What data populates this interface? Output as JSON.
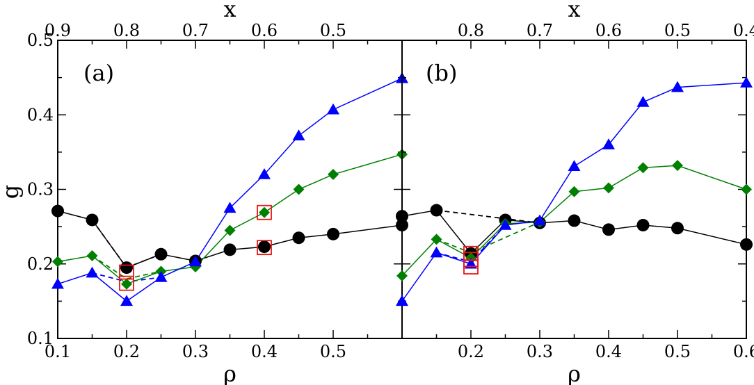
{
  "chart_data": {
    "type": "line",
    "shared_ylabel": "g",
    "ylim": [
      0.1,
      0.5
    ],
    "yticks": [
      "0.1",
      "0.2",
      "0.3",
      "0.4",
      "0.5"
    ],
    "panels": [
      {
        "label": "(a)",
        "xlabel": "ρ",
        "x2label": "x",
        "xlim": [
          0.1,
          0.6
        ],
        "xticks": [
          {
            "value": 0.1,
            "label": "0.1"
          },
          {
            "value": 0.2,
            "label": "0.2"
          },
          {
            "value": 0.3,
            "label": "0.3"
          },
          {
            "value": 0.4,
            "label": "0.4"
          },
          {
            "value": 0.5,
            "label": "0.5"
          }
        ],
        "x2ticks": [
          {
            "value": 0.1,
            "label": "0.9"
          },
          {
            "value": 0.2,
            "label": "0.8"
          },
          {
            "value": 0.3,
            "label": "0.7"
          },
          {
            "value": 0.4,
            "label": "0.6"
          },
          {
            "value": 0.5,
            "label": "0.5"
          }
        ],
        "series": [
          {
            "name": "black-circles",
            "color": "#000000",
            "marker": "circle",
            "x": [
              0.1,
              0.15,
              0.2,
              0.25,
              0.3,
              0.35,
              0.4,
              0.45,
              0.5,
              0.6
            ],
            "y": [
              0.271,
              0.259,
              0.195,
              0.213,
              0.204,
              0.219,
              0.223,
              0.235,
              0.24,
              0.252
            ]
          },
          {
            "name": "green-diamonds",
            "color": "#008000",
            "marker": "diamond",
            "x": [
              0.1,
              0.15,
              0.2,
              0.25,
              0.3,
              0.35,
              0.4,
              0.45,
              0.5,
              0.6
            ],
            "y": [
              0.203,
              0.211,
              0.173,
              0.19,
              0.196,
              0.245,
              0.269,
              0.3,
              0.32,
              0.347
            ]
          },
          {
            "name": "blue-triangles",
            "color": "#0000ff",
            "marker": "triangle",
            "x": [
              0.1,
              0.15,
              0.2,
              0.25,
              0.3,
              0.35,
              0.4,
              0.45,
              0.5,
              0.6
            ],
            "y": [
              0.173,
              0.188,
              0.15,
              0.182,
              0.203,
              0.275,
              0.32,
              0.372,
              0.407,
              0.449
            ]
          }
        ],
        "dashed_bridges": [
          {
            "color": "#000000",
            "x": [
              0.15,
              0.2,
              0.25
            ],
            "y": [
              0.259,
              0.195,
              0.213
            ]
          },
          {
            "color": "#008000",
            "x": [
              0.15,
              0.2,
              0.25
            ],
            "y": [
              0.211,
              0.18,
              0.19
            ]
          },
          {
            "color": "#0000ff",
            "x": [
              0.15,
              0.2,
              0.25
            ],
            "y": [
              0.188,
              0.176,
              0.182
            ]
          }
        ],
        "highlight_boxes": [
          {
            "x": 0.2,
            "y": 0.189
          },
          {
            "x": 0.2,
            "y": 0.174
          },
          {
            "x": 0.4,
            "y": 0.269
          },
          {
            "x": 0.4,
            "y": 0.222
          }
        ]
      },
      {
        "label": "(b)",
        "xlabel": "ρ",
        "x2label": "x",
        "xlim": [
          0.1,
          0.6
        ],
        "xticks": [
          {
            "value": 0.2,
            "label": "0.2"
          },
          {
            "value": 0.3,
            "label": "0.3"
          },
          {
            "value": 0.4,
            "label": "0.4"
          },
          {
            "value": 0.5,
            "label": "0.5"
          },
          {
            "value": 0.6,
            "label": "0.6"
          }
        ],
        "x2ticks": [
          {
            "value": 0.2,
            "label": "0.8"
          },
          {
            "value": 0.3,
            "label": "0.7"
          },
          {
            "value": 0.4,
            "label": "0.6"
          },
          {
            "value": 0.5,
            "label": "0.5"
          },
          {
            "value": 0.6,
            "label": "0.4"
          }
        ],
        "series": [
          {
            "name": "black-circles",
            "color": "#000000",
            "marker": "circle",
            "x": [
              0.1,
              0.15,
              0.2,
              0.25,
              0.3,
              0.35,
              0.4,
              0.45,
              0.5,
              0.6
            ],
            "y": [
              0.264,
              0.272,
              0.214,
              0.259,
              0.255,
              0.258,
              0.246,
              0.252,
              0.248,
              0.226
            ]
          },
          {
            "name": "green-diamonds",
            "color": "#008000",
            "marker": "diamond",
            "x": [
              0.1,
              0.15,
              0.2,
              0.25,
              0.3,
              0.35,
              0.4,
              0.45,
              0.5,
              0.6
            ],
            "y": [
              0.184,
              0.233,
              0.208,
              0.254,
              0.256,
              0.297,
              0.302,
              0.329,
              0.332,
              0.3
            ]
          },
          {
            "name": "blue-triangles",
            "color": "#0000ff",
            "marker": "triangle",
            "x": [
              0.1,
              0.15,
              0.2,
              0.25,
              0.3,
              0.35,
              0.4,
              0.45,
              0.5,
              0.6
            ],
            "y": [
              0.15,
              0.215,
              0.2,
              0.252,
              0.258,
              0.331,
              0.36,
              0.417,
              0.437,
              0.443
            ]
          }
        ],
        "dashed_bridges": [
          {
            "color": "#000000",
            "x": [
              0.15,
              0.3
            ],
            "y": [
              0.272,
              0.255
            ]
          },
          {
            "color": "#008000",
            "x": [
              0.15,
              0.2,
              0.3
            ],
            "y": [
              0.233,
              0.215,
              0.256
            ]
          },
          {
            "color": "#0000ff",
            "x": [
              0.15,
              0.2,
              0.25
            ],
            "y": [
              0.215,
              0.203,
              0.252
            ]
          }
        ],
        "highlight_boxes": [
          {
            "x": 0.2,
            "y": 0.214
          },
          {
            "x": 0.2,
            "y": 0.206
          },
          {
            "x": 0.2,
            "y": 0.196
          }
        ]
      }
    ]
  }
}
